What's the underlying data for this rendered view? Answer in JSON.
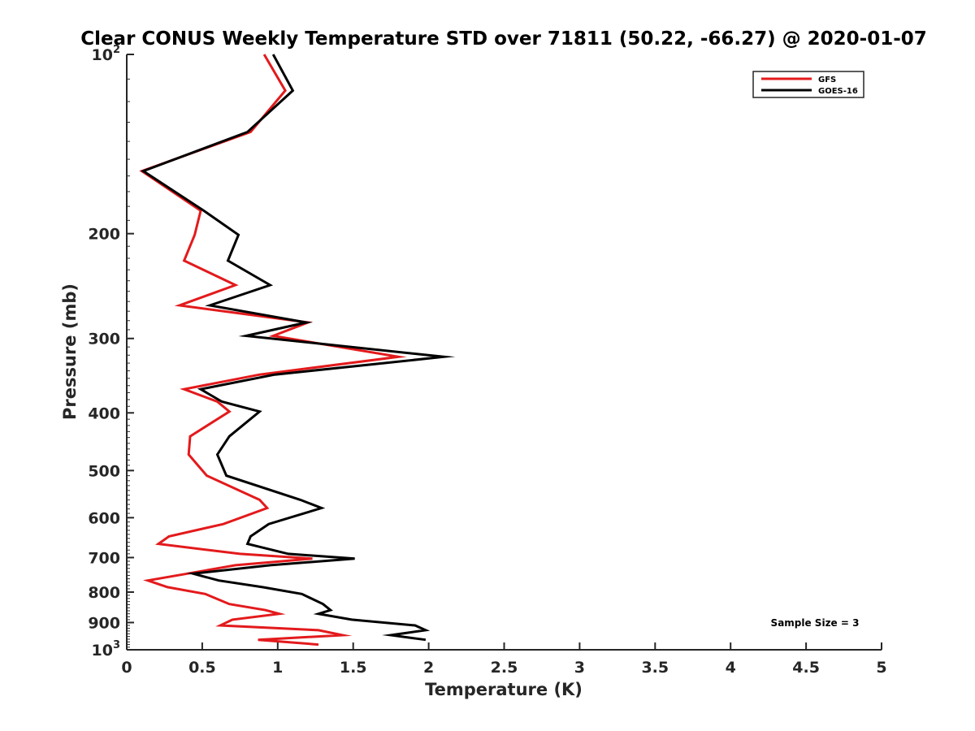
{
  "chart_data": {
    "type": "line",
    "title": "Clear CONUS Weekly Temperature STD over 71811 (50.22, -66.27) @ 2020-01-07",
    "xlabel": "Temperature (K)",
    "ylabel": "Pressure (mb)",
    "xlim": [
      0,
      5
    ],
    "ylim": [
      100,
      1000
    ],
    "y_scale": "log",
    "y_reversed": true,
    "grid": false,
    "legend_position": "top-right",
    "x_ticks": [
      {
        "value": 0,
        "label": "0"
      },
      {
        "value": 0.5,
        "label": "0.5"
      },
      {
        "value": 1,
        "label": "1"
      },
      {
        "value": 1.5,
        "label": "1.5"
      },
      {
        "value": 2,
        "label": "2"
      },
      {
        "value": 2.5,
        "label": "2.5"
      },
      {
        "value": 3,
        "label": "3"
      },
      {
        "value": 3.5,
        "label": "3.5"
      },
      {
        "value": 4,
        "label": "4"
      },
      {
        "value": 4.5,
        "label": "4.5"
      },
      {
        "value": 5,
        "label": "5"
      }
    ],
    "y_ticks": [
      {
        "value": 100,
        "base": "10",
        "exp": "2"
      },
      {
        "value": 200,
        "label": "200"
      },
      {
        "value": 300,
        "label": "300"
      },
      {
        "value": 400,
        "label": "400"
      },
      {
        "value": 500,
        "label": "500"
      },
      {
        "value": 600,
        "label": "600"
      },
      {
        "value": 700,
        "label": "700"
      },
      {
        "value": 800,
        "label": "800"
      },
      {
        "value": 900,
        "label": "900"
      },
      {
        "value": 1000,
        "base": "10",
        "exp": "3"
      }
    ],
    "annotation": "Sample Size = 3",
    "series": [
      {
        "name": "GFS",
        "color": "#e31a1c",
        "points": [
          [
            0.91,
            100
          ],
          [
            1.05,
            115
          ],
          [
            0.82,
            135
          ],
          [
            0.1,
            157
          ],
          [
            0.49,
            183
          ],
          [
            0.45,
            201
          ],
          [
            0.38,
            222
          ],
          [
            0.72,
            244
          ],
          [
            0.35,
            264
          ],
          [
            1.2,
            282
          ],
          [
            0.97,
            297
          ],
          [
            1.8,
            322
          ],
          [
            0.88,
            345
          ],
          [
            0.38,
            365
          ],
          [
            0.6,
            383
          ],
          [
            0.68,
            398
          ],
          [
            0.42,
            438
          ],
          [
            0.41,
            470
          ],
          [
            0.53,
            510
          ],
          [
            0.88,
            560
          ],
          [
            0.93,
            578
          ],
          [
            0.64,
            615
          ],
          [
            0.28,
            645
          ],
          [
            0.21,
            664
          ],
          [
            0.75,
            690
          ],
          [
            1.23,
            703
          ],
          [
            0.72,
            721
          ],
          [
            0.4,
            745
          ],
          [
            0.14,
            765
          ],
          [
            0.27,
            785
          ],
          [
            0.52,
            806
          ],
          [
            0.68,
            838
          ],
          [
            0.92,
            858
          ],
          [
            1.01,
            870
          ],
          [
            0.7,
            890
          ],
          [
            0.62,
            910
          ],
          [
            1.27,
            927
          ],
          [
            1.43,
            945
          ],
          [
            0.87,
            962
          ],
          [
            1.27,
            980
          ]
        ]
      },
      {
        "name": "GOES-16",
        "color": "#000000",
        "points": [
          [
            0.97,
            100
          ],
          [
            1.1,
            115
          ],
          [
            0.8,
            135
          ],
          [
            0.11,
            157
          ],
          [
            0.51,
            183
          ],
          [
            0.74,
            201
          ],
          [
            0.67,
            222
          ],
          [
            0.95,
            244
          ],
          [
            0.55,
            264
          ],
          [
            1.19,
            282
          ],
          [
            0.79,
            297
          ],
          [
            2.1,
            322
          ],
          [
            0.98,
            345
          ],
          [
            0.49,
            365
          ],
          [
            0.63,
            383
          ],
          [
            0.88,
            398
          ],
          [
            0.68,
            438
          ],
          [
            0.6,
            470
          ],
          [
            0.66,
            510
          ],
          [
            1.15,
            560
          ],
          [
            1.29,
            578
          ],
          [
            0.94,
            615
          ],
          [
            0.82,
            645
          ],
          [
            0.8,
            664
          ],
          [
            1.07,
            690
          ],
          [
            1.51,
            703
          ],
          [
            0.95,
            721
          ],
          [
            0.44,
            745
          ],
          [
            0.61,
            765
          ],
          [
            0.9,
            785
          ],
          [
            1.16,
            806
          ],
          [
            1.3,
            838
          ],
          [
            1.35,
            858
          ],
          [
            1.27,
            870
          ],
          [
            1.49,
            890
          ],
          [
            1.91,
            910
          ],
          [
            1.98,
            927
          ],
          [
            1.75,
            945
          ],
          [
            1.98,
            962
          ]
        ]
      }
    ]
  }
}
